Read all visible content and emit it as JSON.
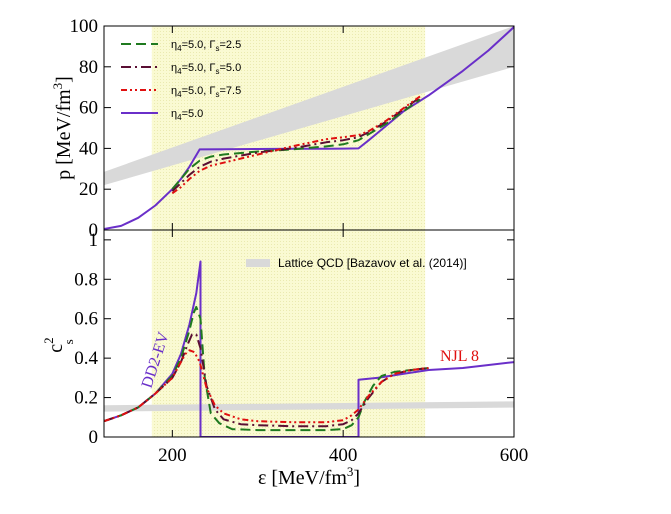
{
  "colors": {
    "eos_purple": "#6a2fc9",
    "green": "#1f7a1f",
    "darkred": "#5a0f33",
    "red": "#e01010",
    "band": "#d9d9d9",
    "region": "#fafad2",
    "region_dots": "#e6e6a8",
    "axis": "#000000"
  },
  "chart_data": [
    {
      "id": "pressure",
      "type": "line",
      "ylabel": {
        "main": "p [MeV/fm",
        "sup": "3",
        "close": "]"
      },
      "xlim": [
        120,
        600
      ],
      "ylim": [
        0,
        100
      ],
      "xticks": [
        200,
        400,
        600
      ],
      "yticks": [
        0,
        20,
        40,
        60,
        80,
        100
      ],
      "highlight_x_range": [
        176,
        496
      ],
      "lattice_band": {
        "x": [
          120,
          600
        ],
        "upper": [
          28.5,
          100
        ],
        "lower": [
          22.0,
          80
        ]
      },
      "legend": [
        {
          "sym": "η",
          "sub1": "4",
          "rest": "=5.0, Γ",
          "sub2": "s",
          "tail": "=2.5",
          "color_key": "green",
          "dash": "10,5"
        },
        {
          "sym": "η",
          "sub1": "4",
          "rest": "=5.0, Γ",
          "sub2": "s",
          "tail": "=5.0",
          "color_key": "darkred",
          "dash": "10,4,2,4"
        },
        {
          "sym": "η",
          "sub1": "4",
          "rest": "=5.0, Γ",
          "sub2": "s",
          "tail": "=7.5",
          "color_key": "red",
          "dash": "6,3,2,3,2,3"
        },
        {
          "sym": "η",
          "sub1": "4",
          "rest": "=5.0",
          "sub2": "",
          "tail": "",
          "color_key": "eos_purple",
          "dash": ""
        }
      ],
      "series": [
        {
          "name": "η4=5.0",
          "color_key": "eos_purple",
          "dash": "",
          "x": [
            120,
            140,
            160,
            180,
            200,
            210,
            220,
            232,
            260,
            300,
            340,
            380,
            400,
            418,
            430,
            450,
            470,
            500,
            540,
            570,
            600
          ],
          "y": [
            0.5,
            2,
            6,
            12,
            20,
            25,
            31,
            39.5,
            39.6,
            39.7,
            39.8,
            39.8,
            39.9,
            40,
            44,
            51,
            58,
            66,
            78,
            88,
            99.5
          ]
        },
        {
          "name": "Γs=2.5",
          "color_key": "green",
          "dash": "10,5",
          "x": [
            200,
            210,
            220,
            232,
            245,
            260,
            300,
            340,
            380,
            400,
            418,
            430,
            450,
            470,
            490
          ],
          "y": [
            20,
            25,
            30,
            34,
            36,
            37,
            38.5,
            39.5,
            41,
            42,
            44,
            47,
            52,
            58,
            64
          ]
        },
        {
          "name": "Γs=5.0",
          "color_key": "darkred",
          "dash": "10,4,2,4",
          "x": [
            200,
            210,
            220,
            232,
            245,
            260,
            300,
            340,
            380,
            400,
            418,
            430,
            450,
            470,
            490
          ],
          "y": [
            19,
            23,
            27,
            31,
            33.5,
            35,
            38,
            40,
            43,
            44,
            45.5,
            48,
            53,
            59,
            65
          ]
        },
        {
          "name": "Γs=7.5",
          "color_key": "red",
          "dash": "6,3,2,3,2,3",
          "x": [
            200,
            210,
            220,
            232,
            245,
            260,
            300,
            340,
            380,
            400,
            418,
            430,
            450,
            470,
            490
          ],
          "y": [
            18,
            21,
            25,
            29,
            31.5,
            33,
            37,
            41,
            44.5,
            45.5,
            46.5,
            48.5,
            53.5,
            59.5,
            65.5
          ]
        }
      ]
    },
    {
      "id": "sound-speed",
      "type": "line",
      "xlabel": {
        "main": "ε [MeV/fm",
        "sup": "3",
        "close": "]"
      },
      "ylabel": {
        "main": "c",
        "sup": "2",
        "sub": "s"
      },
      "xlim": [
        120,
        600
      ],
      "ylim": [
        0,
        1.05
      ],
      "xticks": [
        200,
        400,
        600
      ],
      "yticks": [
        0,
        0.2,
        0.4,
        0.6,
        0.8,
        1
      ],
      "ytick_labels": [
        "0",
        "0.2",
        "0.4",
        "0.6",
        "0.8",
        "1"
      ],
      "highlight_x_range": [
        176,
        496
      ],
      "lattice_band": {
        "x": [
          120,
          600
        ],
        "center": [
          0.145,
          0.165
        ],
        "half_width": 0.016
      },
      "legend": [
        {
          "label": "Lattice QCD [Bazavov et al. (2014)]",
          "color_key": "band"
        }
      ],
      "annotations": [
        {
          "id": "dd2-ev",
          "text": "DD2-EV",
          "color_key": "eos_purple"
        },
        {
          "id": "njl-8",
          "text": "NJL 8",
          "color_key": "red"
        }
      ],
      "series": [
        {
          "name": "η4=5.0",
          "color_key": "eos_purple",
          "dash": "",
          "x": [
            120,
            140,
            160,
            180,
            200,
            210,
            220,
            228,
            233,
            233,
            300,
            350,
            380,
            400,
            418,
            418,
            440,
            470,
            500,
            540,
            600
          ],
          "y": [
            0.08,
            0.11,
            0.15,
            0.22,
            0.32,
            0.42,
            0.57,
            0.73,
            0.89,
            0,
            0,
            0,
            0,
            0,
            0,
            0.29,
            0.3,
            0.32,
            0.34,
            0.35,
            0.38
          ]
        },
        {
          "name": "Γs=2.5",
          "color_key": "green",
          "dash": "10,5",
          "x": [
            120,
            140,
            160,
            180,
            200,
            210,
            220,
            225,
            228,
            233,
            238,
            245,
            255,
            270,
            300,
            340,
            380,
            400,
            410,
            418,
            425,
            435,
            445,
            460,
            480,
            500
          ],
          "y": [
            0.08,
            0.11,
            0.15,
            0.22,
            0.31,
            0.4,
            0.54,
            0.63,
            0.66,
            0.6,
            0.3,
            0.12,
            0.07,
            0.04,
            0.035,
            0.035,
            0.035,
            0.04,
            0.06,
            0.1,
            0.18,
            0.26,
            0.31,
            0.33,
            0.34,
            0.35
          ]
        },
        {
          "name": "Γs=5.0",
          "color_key": "darkred",
          "dash": "10,4,2,4",
          "x": [
            120,
            140,
            160,
            180,
            200,
            210,
            218,
            223,
            228,
            233,
            240,
            250,
            260,
            280,
            300,
            340,
            380,
            400,
            410,
            418,
            430,
            445,
            460,
            480,
            500
          ],
          "y": [
            0.08,
            0.11,
            0.15,
            0.22,
            0.3,
            0.38,
            0.47,
            0.52,
            0.52,
            0.45,
            0.26,
            0.14,
            0.09,
            0.065,
            0.06,
            0.055,
            0.055,
            0.065,
            0.085,
            0.12,
            0.2,
            0.28,
            0.32,
            0.34,
            0.35
          ]
        },
        {
          "name": "Γs=7.5",
          "color_key": "red",
          "dash": "6,3,2,3,2,3",
          "x": [
            120,
            140,
            160,
            180,
            200,
            210,
            215,
            220,
            226,
            232,
            240,
            250,
            260,
            280,
            300,
            340,
            380,
            400,
            410,
            418,
            430,
            445,
            460,
            480,
            500
          ],
          "y": [
            0.08,
            0.11,
            0.15,
            0.22,
            0.3,
            0.38,
            0.42,
            0.44,
            0.43,
            0.38,
            0.25,
            0.16,
            0.12,
            0.09,
            0.08,
            0.075,
            0.075,
            0.085,
            0.11,
            0.14,
            0.21,
            0.28,
            0.32,
            0.34,
            0.35
          ]
        }
      ]
    }
  ]
}
